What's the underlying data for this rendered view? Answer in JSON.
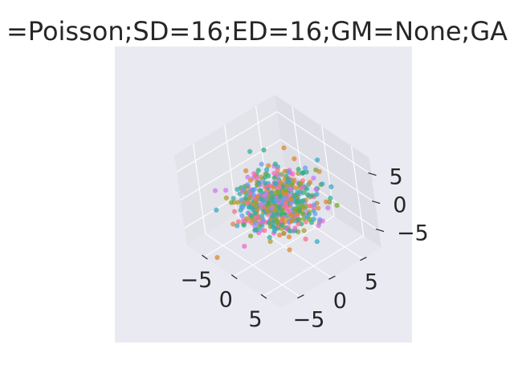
{
  "chart_data": {
    "type": "scatter",
    "projection": "3d",
    "title": "=Poisson;SD=16;ED=16;GM=None;GA",
    "xlabel": "",
    "ylabel": "",
    "zlabel": "",
    "x_ticks": [
      "−5",
      "0",
      "5"
    ],
    "y_ticks": [
      "−5",
      "0",
      "5"
    ],
    "z_ticks": [
      "5",
      "0",
      "−5"
    ],
    "xlim": [
      -8,
      8
    ],
    "ylim": [
      -8,
      8
    ],
    "zlim": [
      -8,
      8
    ],
    "grid": true,
    "legend": "none",
    "point_count": 600,
    "series_colors": [
      "#f77189",
      "#dc8932",
      "#ae9d31",
      "#77ab31",
      "#33b07a",
      "#36ada4",
      "#38a9c5",
      "#6e9bf4",
      "#cc7af4",
      "#f565cc"
    ],
    "cluster_center": [
      0,
      0,
      0
    ],
    "cluster_spread": 2.4
  },
  "colors": {
    "pane_left": "#e3e3ea",
    "pane_right": "#dedee6",
    "pane_floor": "#e6e6ee",
    "axes_background": "#eaeaf2",
    "grid": "#ffffff",
    "text": "#262626"
  }
}
